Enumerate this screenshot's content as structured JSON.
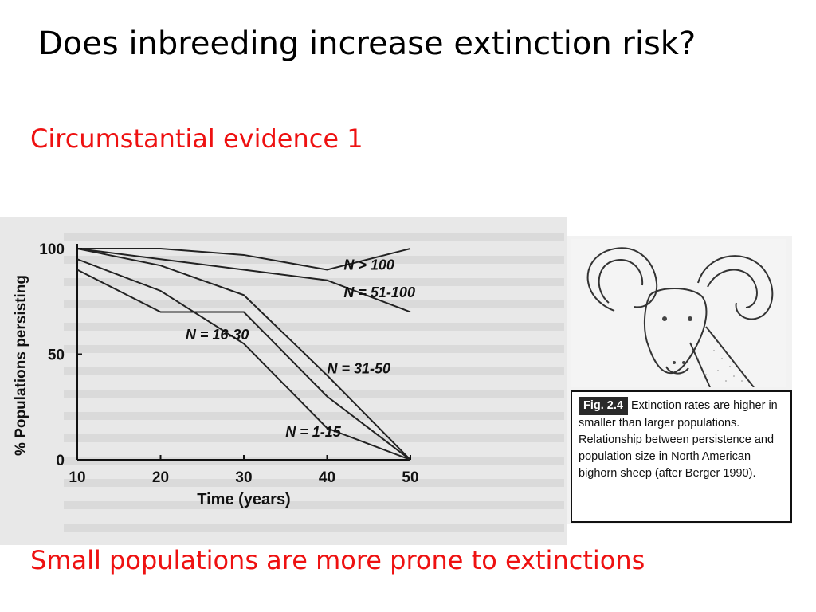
{
  "slide": {
    "title": "Does inbreeding increase extinction risk?",
    "subtitle": "Circumstantial evidence 1",
    "conclusion": "Small populations are more prone to extinctions"
  },
  "figure": {
    "label": "Fig. 2.4",
    "caption": "Extinction rates are higher in smaller than larger populations. Relationship between persistence and population size in North American bighorn sheep (after Berger 1990).",
    "image": "bighorn-ram-sketch"
  },
  "colors": {
    "title": "#000000",
    "accent": "#ee1111",
    "scan_background": "#e8e8e8"
  },
  "chart_data": {
    "type": "line",
    "title": "",
    "xlabel": "Time (years)",
    "ylabel": "% Populations persisting",
    "xlim": [
      10,
      50
    ],
    "ylim": [
      0,
      100
    ],
    "xticks": [
      10,
      20,
      30,
      40,
      50
    ],
    "yticks": [
      0,
      50,
      100
    ],
    "grid": false,
    "legend": "inline labels",
    "series": [
      {
        "name": "N > 100",
        "x": [
          10,
          20,
          30,
          40,
          50
        ],
        "y": [
          100,
          100,
          97,
          90,
          100
        ]
      },
      {
        "name": "N = 51-100",
        "x": [
          10,
          20,
          30,
          40,
          50
        ],
        "y": [
          100,
          95,
          90,
          85,
          70
        ]
      },
      {
        "name": "N = 16-30",
        "x": [
          10,
          20,
          30,
          40,
          50
        ],
        "y": [
          90,
          70,
          70,
          30,
          0
        ]
      },
      {
        "name": "N = 31-50",
        "x": [
          10,
          20,
          30,
          40,
          50
        ],
        "y": [
          100,
          92,
          78,
          40,
          0
        ]
      },
      {
        "name": "N = 1-15",
        "x": [
          10,
          20,
          30,
          40,
          50
        ],
        "y": [
          95,
          80,
          55,
          15,
          0
        ]
      }
    ]
  }
}
